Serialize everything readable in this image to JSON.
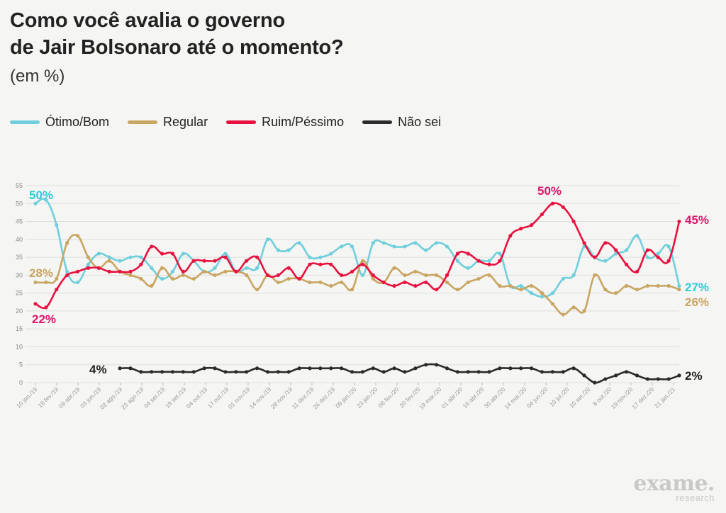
{
  "title_line1": "Como você avalia o governo",
  "title_line2": "de Jair Bolsonaro até o momento?",
  "subtitle": "(em %)",
  "brand": {
    "name": "exame.",
    "sub": "research"
  },
  "chart_data": {
    "type": "line",
    "ylim": [
      0,
      55
    ],
    "yticks": [
      0,
      5,
      10,
      15,
      20,
      25,
      30,
      35,
      40,
      45,
      50,
      55
    ],
    "grid": true,
    "legend_position": "top-left",
    "tick_labels": [
      "10 jan./19",
      "18 fev./19",
      "09 abr./19",
      "03 jun./19",
      "02 ago./19",
      "23 ago./19",
      "04 set./19",
      "19 set./19",
      "04 out./19",
      "17 out./19",
      "01 nov./19",
      "14 nov./19",
      "28 nov./19",
      "11 dez./19",
      "26 dez./19",
      "09 jan./20",
      "23 jan./20",
      "06 fev./20",
      "20 fev./20",
      "19 mar./20",
      "01 abr./20",
      "16 abr./20",
      "30 abr./20",
      "14 mai./20",
      "04 jun./20",
      "10 jul./20",
      "10 set./20",
      "8 out./20",
      "19 nov./20",
      "17 dez./20",
      "21 jan./21"
    ],
    "series": [
      {
        "name": "Ótimo/Bom",
        "color": "#6fcfdc",
        "label_color": "#2bcbd6",
        "start_label": "50%",
        "end_label": "27%",
        "values": [
          50,
          51,
          44,
          31,
          28,
          33,
          36,
          35,
          34,
          35,
          35,
          32,
          29,
          31,
          36,
          34,
          31,
          32,
          36,
          31,
          32,
          32,
          40,
          37,
          37,
          39,
          35,
          35,
          36,
          38,
          38,
          30,
          39,
          39,
          38,
          38,
          39,
          37,
          39,
          38,
          34,
          32,
          34,
          34,
          36,
          27,
          27,
          25,
          24,
          25,
          29,
          30,
          38,
          35,
          34,
          36,
          37,
          41,
          35,
          36,
          38,
          27
        ]
      },
      {
        "name": "Regular",
        "color": "#c9a562",
        "label_color": "#c9a562",
        "start_label": "28%",
        "end_label": "26%",
        "values": [
          28,
          28,
          29,
          39,
          41,
          35,
          32,
          34,
          31,
          30,
          29,
          27,
          32,
          29,
          30,
          29,
          31,
          30,
          31,
          31,
          30,
          26,
          30,
          28,
          29,
          29,
          28,
          28,
          27,
          28,
          26,
          34,
          29,
          28,
          32,
          30,
          31,
          30,
          30,
          28,
          26,
          28,
          29,
          30,
          27,
          27,
          26,
          27,
          25,
          22,
          19,
          21,
          20,
          30,
          26,
          25,
          27,
          26,
          27,
          27,
          27,
          26
        ]
      },
      {
        "name": "Ruim/Péssimo",
        "color": "#e8113f",
        "label_color": "#e0136a",
        "start_label": "22%",
        "end_label": "45%",
        "peak_label": "50%",
        "values": [
          22,
          21,
          26,
          30,
          31,
          32,
          32,
          31,
          31,
          31,
          33,
          38,
          36,
          36,
          31,
          34,
          34,
          34,
          35,
          31,
          34,
          35,
          30,
          30,
          32,
          29,
          33,
          33,
          33,
          30,
          31,
          33,
          30,
          28,
          27,
          28,
          27,
          28,
          26,
          30,
          36,
          36,
          34,
          33,
          34,
          41,
          43,
          44,
          47,
          50,
          49,
          45,
          39,
          35,
          39,
          37,
          33,
          31,
          37,
          35,
          34,
          45
        ]
      },
      {
        "name": "Não sei",
        "color": "#2b2b2b",
        "label_color": "#222222",
        "start_label": "4%",
        "end_label": "2%",
        "values": [
          4,
          4,
          3,
          3,
          3,
          3,
          3,
          3,
          4,
          4,
          3,
          3,
          3,
          4,
          3,
          3,
          3,
          4,
          4,
          4,
          4,
          4,
          3,
          3,
          4,
          3,
          4,
          3,
          4,
          5,
          5,
          4,
          3,
          3,
          3,
          3,
          4,
          4,
          4,
          4,
          3,
          3,
          3,
          4,
          2,
          0,
          1,
          2,
          3,
          2,
          1,
          1,
          1,
          2
        ]
      }
    ]
  }
}
